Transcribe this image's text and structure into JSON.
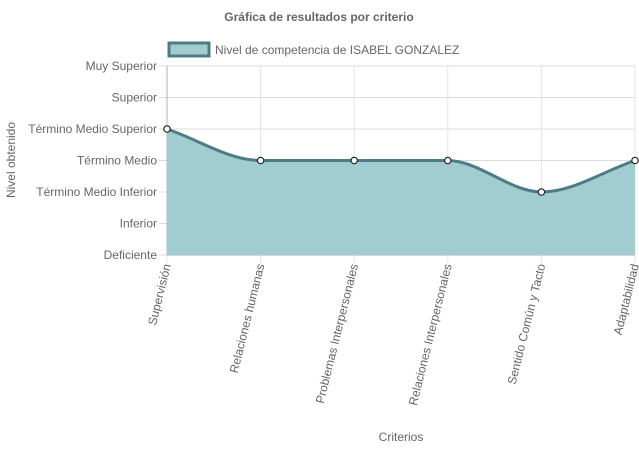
{
  "chart_data": {
    "type": "area",
    "title": "Gráfica de resultados por criterio",
    "xlabel": "Criterios",
    "ylabel": "Nivel obtenido",
    "y_levels": [
      "Deficiente",
      "Inferior",
      "Término Medio Inferior",
      "Término Medio",
      "Término Medio Superior",
      "Superior",
      "Muy Superior"
    ],
    "categories": [
      "Supervisión",
      "Relaciones humanas",
      "Problemas Interpersonales",
      "Relaciones Interpersonales",
      "Sentido Común y Tacto",
      "Adaptabilidad"
    ],
    "series": [
      {
        "name": "Nivel de competencia de ISABEL GONZALEZ",
        "values": [
          4,
          3,
          3,
          3,
          2,
          3
        ],
        "value_labels": [
          "Término Medio Superior",
          "Término Medio",
          "Término Medio",
          "Término Medio",
          "Término Medio Inferior",
          "Término Medio"
        ],
        "line_color": "#4e7c86",
        "fill_color": "#a2cdd0"
      }
    ],
    "ylim": [
      0,
      6
    ],
    "grid": true,
    "legend_position": "top"
  }
}
